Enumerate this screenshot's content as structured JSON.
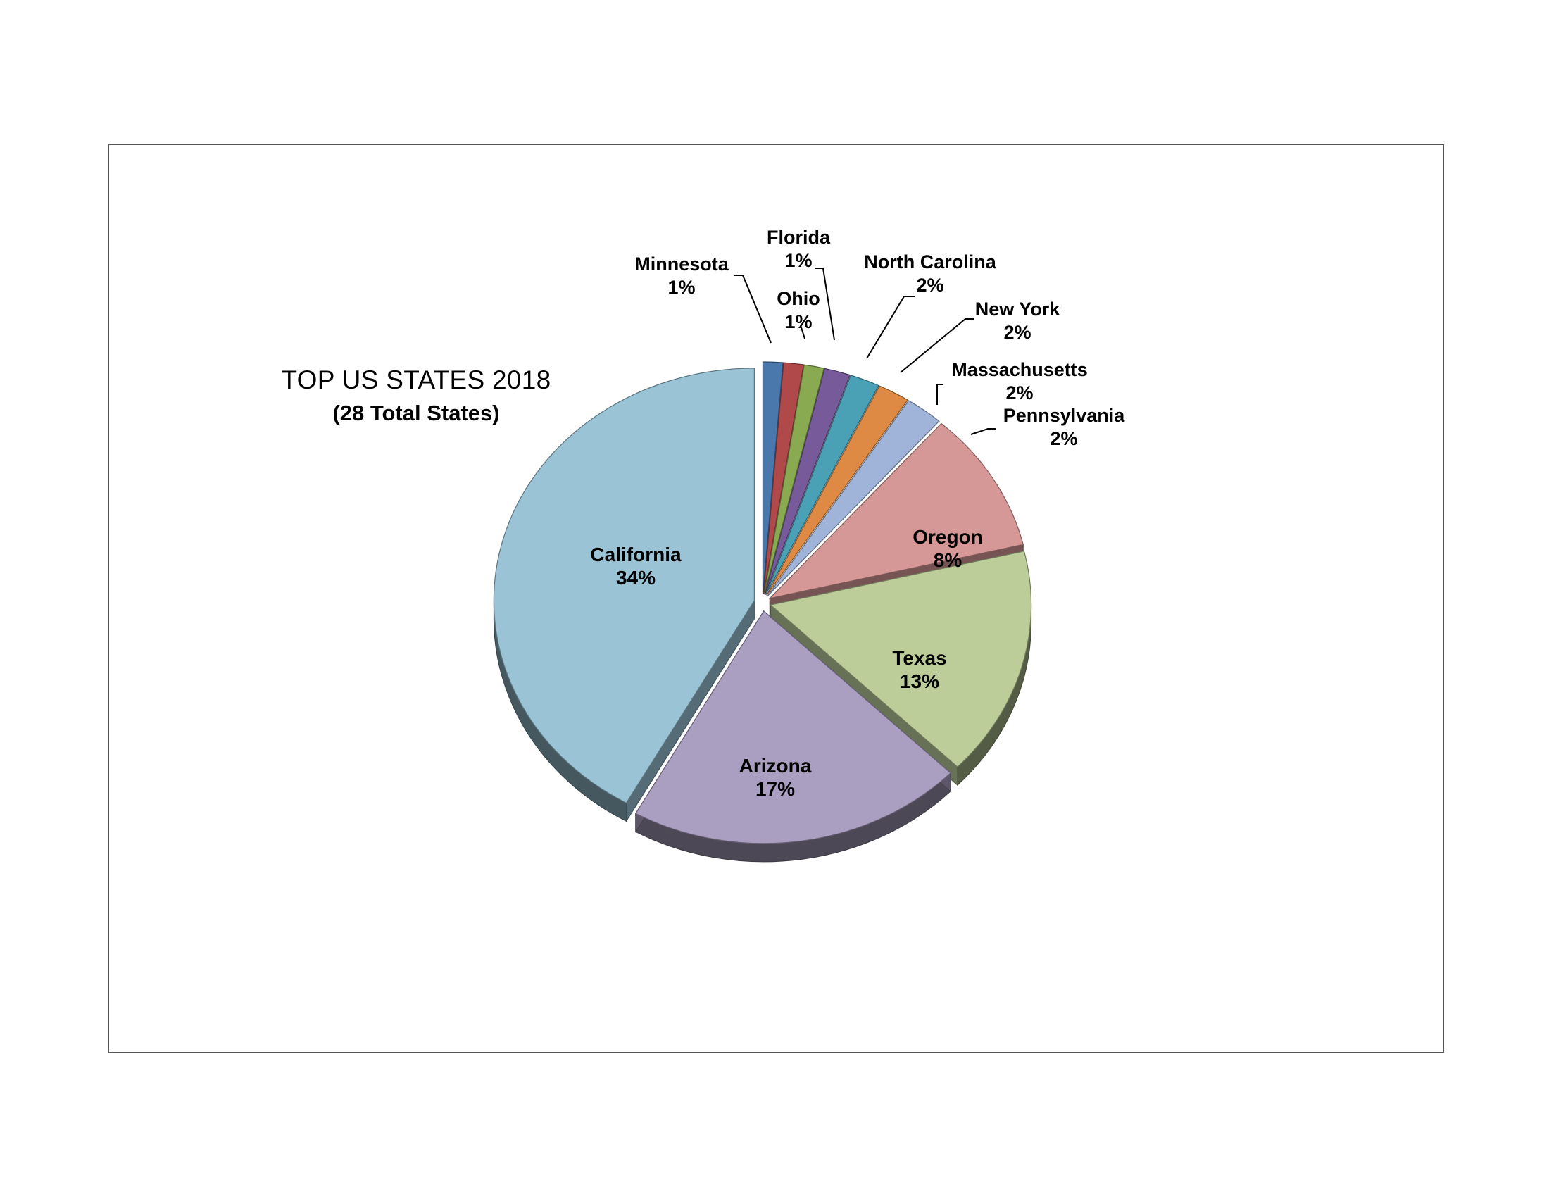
{
  "chart_data": {
    "type": "pie",
    "title": "TOP US STATES 2018",
    "subtitle": "(28 Total States)",
    "start_angle_deg": 0,
    "direction": "clockwise",
    "slices": [
      {
        "name": "Minnesota",
        "label": "1%",
        "value": 1,
        "color": "#4a78ad",
        "exploded": true
      },
      {
        "name": "Ohio",
        "label": "1%",
        "value": 1,
        "color": "#b04a4a",
        "exploded": true
      },
      {
        "name": "Florida",
        "label": "1%",
        "value": 1,
        "color": "#8aaa52",
        "exploded": true
      },
      {
        "name": "North Carolina",
        "label": "2%",
        "value": 1.3,
        "color": "#775a99",
        "exploded": true
      },
      {
        "name": "New York",
        "label": "2%",
        "value": 1.5,
        "color": "#4aa0b4",
        "exploded": true
      },
      {
        "name": "Massachusetts",
        "label": "2%",
        "value": 1.6,
        "color": "#de8a44",
        "exploded": true
      },
      {
        "name": "Pennsylvania",
        "label": "2%",
        "value": 1.9,
        "color": "#9fb4d8",
        "exploded": true
      },
      {
        "name": "Oregon",
        "label": "8%",
        "value": 8,
        "color": "#d59896",
        "exploded": true
      },
      {
        "name": "Texas",
        "label": "13%",
        "value": 13,
        "color": "#bccd9a",
        "exploded": true
      },
      {
        "name": "Arizona",
        "label": "17%",
        "value": 17,
        "color": "#aa9fc0",
        "exploded": true
      },
      {
        "name": "California",
        "label": "34%",
        "value": 34,
        "color": "#9ac4d6",
        "exploded": true
      }
    ]
  }
}
